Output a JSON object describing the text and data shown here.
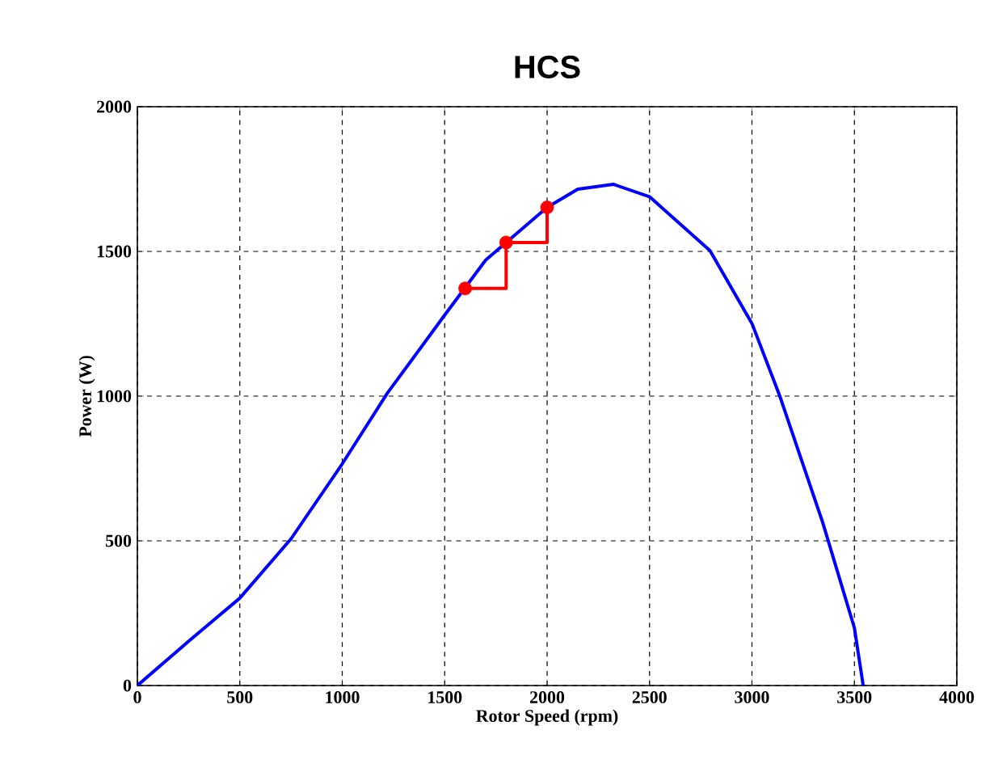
{
  "chart_data": {
    "type": "line",
    "title": "HCS",
    "xlabel": "Rotor Speed (rpm)",
    "ylabel": "Power (W)",
    "xlim": [
      0,
      4000
    ],
    "ylim": [
      0,
      2000
    ],
    "xticks": [
      0,
      500,
      1000,
      1500,
      2000,
      2500,
      3000,
      3500,
      4000
    ],
    "yticks": [
      0,
      500,
      1000,
      1500,
      2000
    ],
    "grid": true,
    "series": [
      {
        "color": "#0000ff",
        "marker": "none",
        "x": [
          0,
          250,
          500,
          750,
          1000,
          1220,
          1500,
          1700,
          2000,
          2150,
          2323,
          2500,
          2795,
          3000,
          3136,
          3346,
          3500,
          3543
        ],
        "values": [
          0,
          153,
          302,
          507,
          766,
          1010,
          1280,
          1470,
          1652,
          1715,
          1732,
          1689,
          1503,
          1251,
          1000,
          562,
          199,
          0
        ]
      },
      {
        "type": "line",
        "color": "#ff0000",
        "marker": "none",
        "x": [
          1600,
          1800,
          1800,
          2000,
          2000
        ],
        "values": [
          1372,
          1372,
          1531,
          1531,
          1652
        ]
      },
      {
        "type": "scatter",
        "color": "#ff0000",
        "marker": "circle",
        "x": [
          1600,
          1800,
          2000
        ],
        "values": [
          1372,
          1531,
          1652
        ]
      }
    ]
  }
}
